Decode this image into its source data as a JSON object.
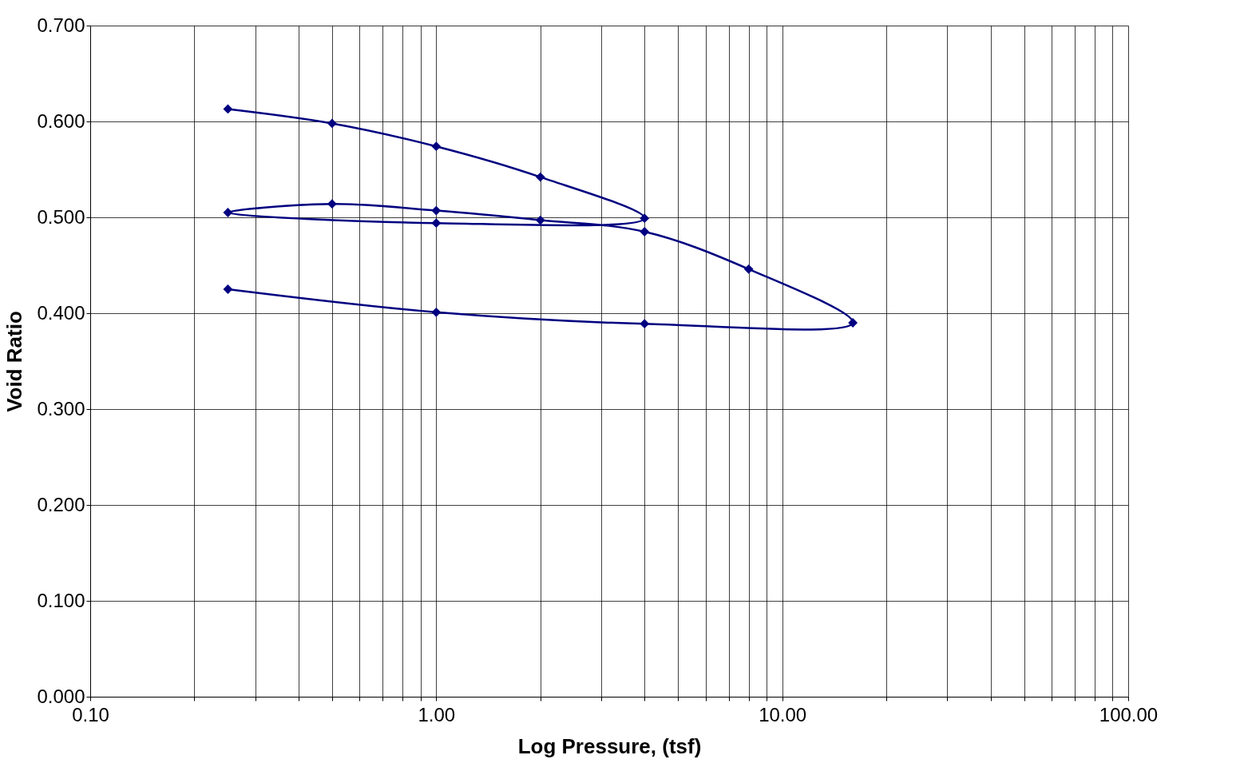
{
  "chart_data": {
    "type": "line",
    "xlabel": "Log Pressure, (tsf)",
    "ylabel": "Void Ratio",
    "x": [
      0.25,
      0.5,
      1,
      2,
      4,
      1,
      0.25,
      0.5,
      1,
      2,
      4,
      8,
      16,
      4,
      1,
      0.25
    ],
    "series": [
      {
        "color": "#000080",
        "values": [
          0.613,
          0.598,
          0.574,
          0.542,
          0.499,
          0.494,
          0.505,
          0.514,
          0.507,
          0.497,
          0.485,
          0.446,
          0.39,
          0.389,
          0.401,
          0.425
        ]
      }
    ],
    "log": "x",
    "marker": "diamond",
    "line_style": "solid",
    "grid": true,
    "xlim": [
      0.1,
      100
    ],
    "xticks": [
      {
        "value": 0.1,
        "label": "0.10"
      },
      {
        "value": 0.2,
        "label": null
      },
      {
        "value": 0.3,
        "label": null
      },
      {
        "value": 0.4,
        "label": null
      },
      {
        "value": 0.5,
        "label": null
      },
      {
        "value": 0.6,
        "label": null
      },
      {
        "value": 0.7,
        "label": null
      },
      {
        "value": 0.8,
        "label": null
      },
      {
        "value": 0.9,
        "label": null
      },
      {
        "value": 1,
        "label": "1.00"
      },
      {
        "value": 2,
        "label": null
      },
      {
        "value": 3,
        "label": null
      },
      {
        "value": 4,
        "label": null
      },
      {
        "value": 5,
        "label": null
      },
      {
        "value": 6,
        "label": null
      },
      {
        "value": 7,
        "label": null
      },
      {
        "value": 8,
        "label": null
      },
      {
        "value": 9,
        "label": null
      },
      {
        "value": 10,
        "label": "10.00"
      },
      {
        "value": 20,
        "label": null
      },
      {
        "value": 30,
        "label": null
      },
      {
        "value": 40,
        "label": null
      },
      {
        "value": 50,
        "label": null
      },
      {
        "value": 60,
        "label": null
      },
      {
        "value": 70,
        "label": null
      },
      {
        "value": 80,
        "label": null
      },
      {
        "value": 90,
        "label": null
      },
      {
        "value": 100,
        "label": "100.00"
      }
    ],
    "ylim": [
      0,
      0.7
    ],
    "yticks": [
      {
        "value": 0,
        "label": "0.000"
      },
      {
        "value": 0.1,
        "label": "0.100"
      },
      {
        "value": 0.2,
        "label": "0.200"
      },
      {
        "value": 0.3,
        "label": "0.300"
      },
      {
        "value": 0.4,
        "label": "0.400"
      },
      {
        "value": 0.5,
        "label": "0.500"
      },
      {
        "value": 0.6,
        "label": "0.600"
      },
      {
        "value": 0.7,
        "label": "0.700"
      }
    ]
  }
}
